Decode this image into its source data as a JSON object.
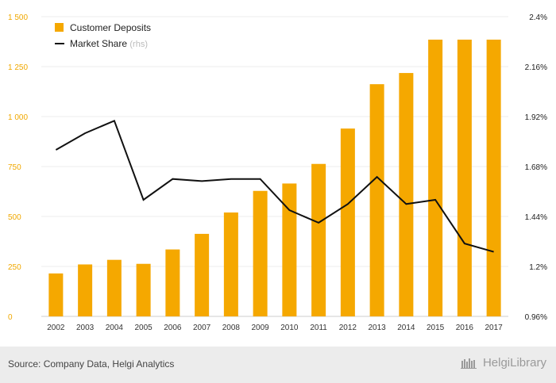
{
  "chart_data": {
    "type": "bar",
    "categories": [
      "2002",
      "2003",
      "2004",
      "2005",
      "2006",
      "2007",
      "2008",
      "2009",
      "2010",
      "2011",
      "2012",
      "2013",
      "2014",
      "2015",
      "2016",
      "2017"
    ],
    "series": [
      {
        "name": "Customer Deposits",
        "type": "bar",
        "axis": "left",
        "color": "#f5a800",
        "values": [
          215,
          260,
          283,
          263,
          335,
          413,
          520,
          628,
          665,
          763,
          940,
          1162,
          1218,
          1385,
          1385,
          1385
        ]
      },
      {
        "name": "Market Share",
        "name_suffix": "(rhs)",
        "type": "line",
        "axis": "right",
        "color": "#111111",
        "values": [
          1.76,
          1.84,
          1.9,
          1.52,
          1.62,
          1.61,
          1.62,
          1.62,
          1.47,
          1.41,
          1.5,
          1.63,
          1.5,
          1.52,
          1.31,
          1.27
        ]
      }
    ],
    "y_left": {
      "min": 0,
      "max": 1500,
      "ticks": [
        0,
        250,
        500,
        750,
        1000,
        1250,
        1500
      ],
      "tick_labels": [
        "0",
        "250",
        "500",
        "750",
        "1 000",
        "1 250",
        "1 500"
      ],
      "color": "#f0a800"
    },
    "y_right": {
      "min": 0.96,
      "max": 2.4,
      "ticks": [
        0.96,
        1.2,
        1.44,
        1.68,
        1.92,
        2.16,
        2.4
      ],
      "tick_labels": [
        "0.96%",
        "1.2%",
        "1.44%",
        "1.68%",
        "1.92%",
        "2.16%",
        "2.4%"
      ]
    },
    "grid": true,
    "legend": "top-left"
  },
  "footer": {
    "source": "Source: Company Data, Helgi Analytics",
    "brand": "HelgiLibrary"
  }
}
